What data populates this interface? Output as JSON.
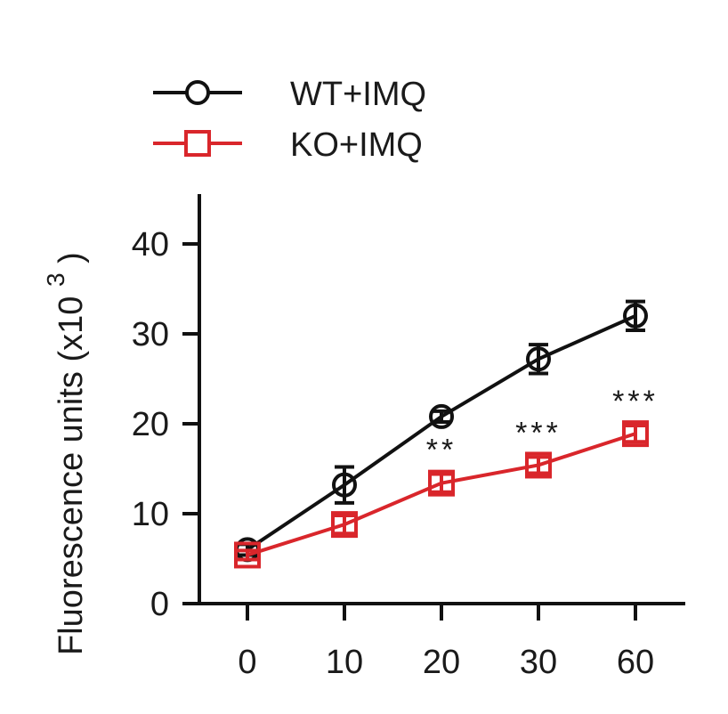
{
  "chart_data": {
    "type": "line",
    "title": "",
    "xlabel": "",
    "ylabel": "Fluorescence units (x10",
    "ylabel_superscript": "3",
    "ylabel_close": ")",
    "categories": [
      "0",
      "10",
      "20",
      "30",
      "60"
    ],
    "ylim": [
      0,
      45
    ],
    "yticks": [
      0,
      10,
      20,
      30,
      40
    ],
    "grid": false,
    "legend_position": "top-left",
    "series": [
      {
        "name": "WT+IMQ",
        "marker": "circle",
        "color": "#111111",
        "values": [
          6,
          13.2,
          20.8,
          27.2,
          32
        ],
        "errors": [
          0.6,
          2.0,
          0.6,
          1.6,
          1.6
        ]
      },
      {
        "name": "KO+IMQ",
        "marker": "square",
        "color": "#d9262b",
        "values": [
          5.4,
          8.8,
          13.4,
          15.4,
          18.9
        ],
        "errors": [
          0.5,
          1.0,
          1.0,
          0.9,
          0.9
        ]
      }
    ],
    "annotations": [
      {
        "category": "20",
        "text": "**"
      },
      {
        "category": "30",
        "text": "***"
      },
      {
        "category": "60",
        "text": "***"
      }
    ]
  }
}
